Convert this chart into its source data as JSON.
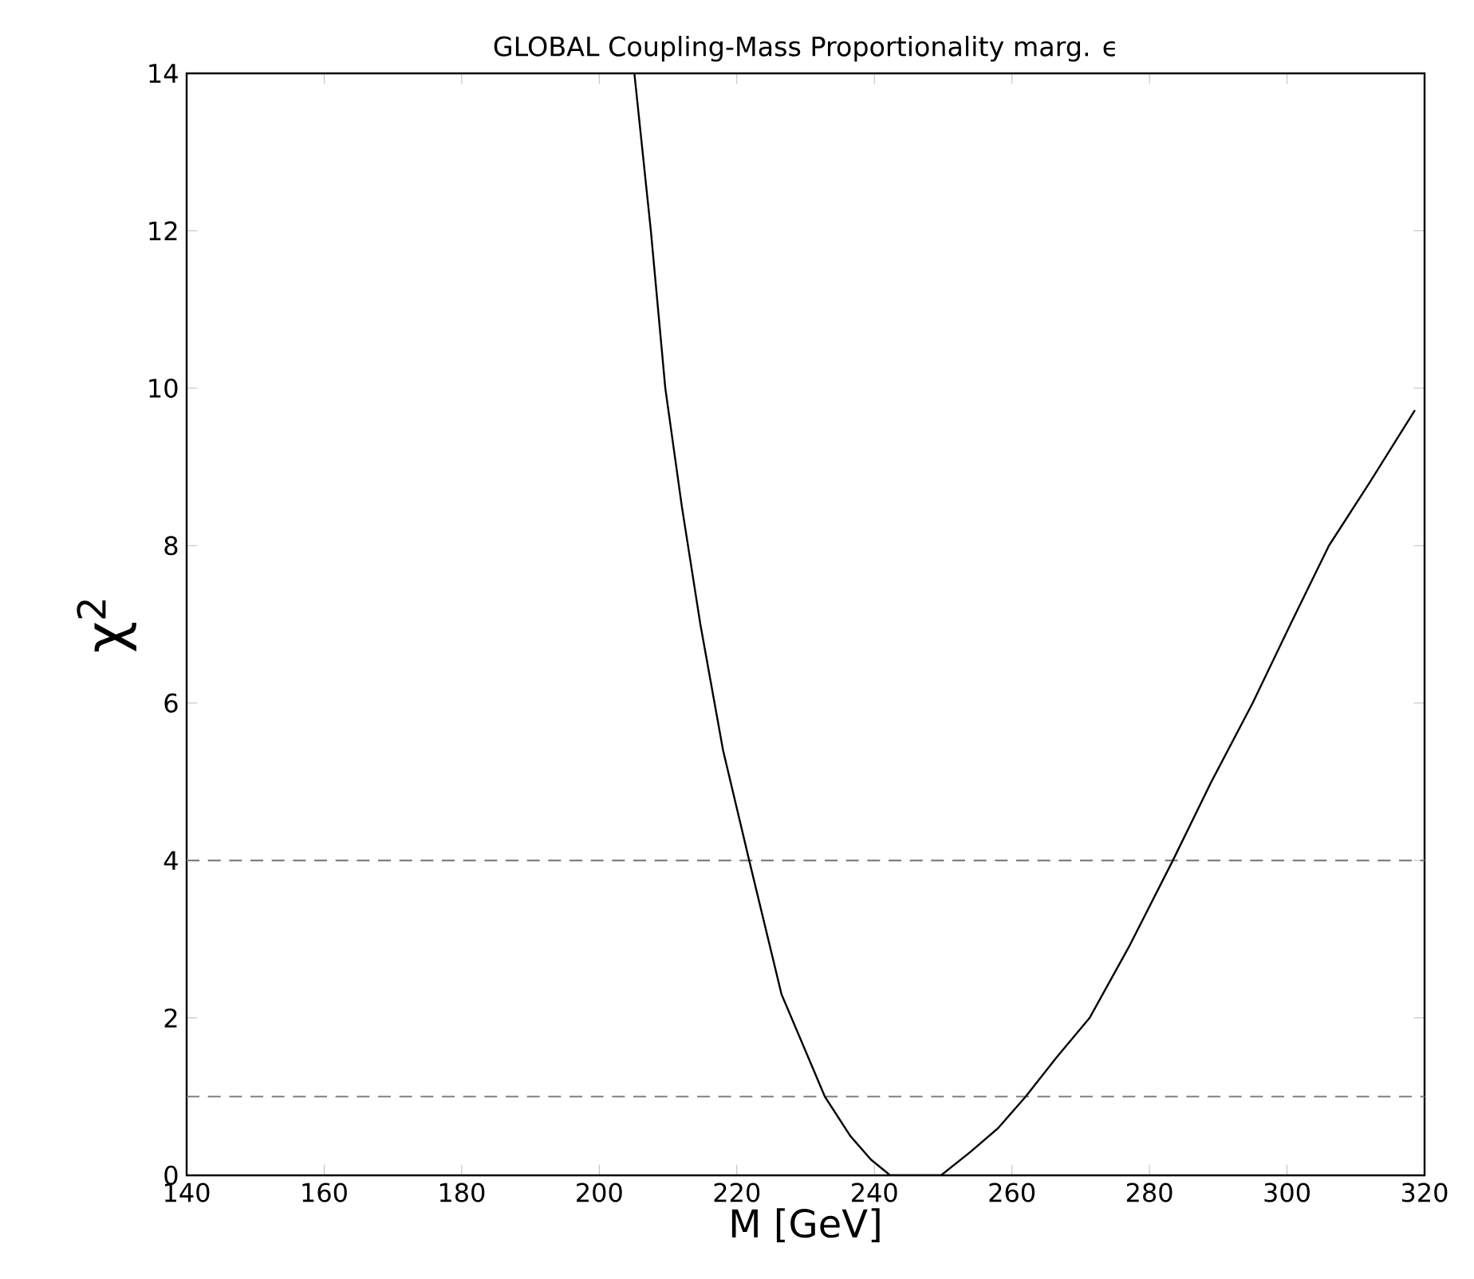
{
  "chart_data": {
    "type": "line",
    "title": "GLOBAL Coupling-Mass Proportionality marg. ϵ",
    "xlabel": "M [GeV]",
    "ylabel": "χ$^{2}$",
    "x": [
      205.1,
      207.5,
      209.6,
      212,
      214.7,
      218,
      221.8,
      226.5,
      232.8,
      236.5,
      239.5,
      242.3,
      246,
      249.7,
      254,
      258,
      262,
      266.5,
      271.3,
      277,
      283.4,
      289,
      295,
      300.5,
      306.1,
      312,
      318.6
    ],
    "series": [
      {
        "color": "#000000",
        "values": [
          14,
          12,
          10,
          8.5,
          7,
          5.4,
          4,
          2.3,
          1,
          0.5,
          0.2,
          0,
          0,
          0,
          0.3,
          0.6,
          1,
          1.5,
          2,
          2.9,
          4,
          5,
          6,
          7,
          8,
          8.8,
          9.72
        ]
      }
    ],
    "xlim": [
      140,
      320
    ],
    "ylim": [
      0,
      14
    ],
    "xticks": [
      140,
      160,
      180,
      200,
      220,
      240,
      260,
      280,
      300,
      320
    ],
    "yticks": [
      0,
      2,
      4,
      6,
      8,
      10,
      12,
      14
    ],
    "ref_lines": [
      {
        "axis": "y",
        "value": 4,
        "color": "#808080",
        "line_style": "dashed"
      },
      {
        "axis": "y",
        "value": 1,
        "color": "#808080",
        "line_style": "dashed"
      }
    ]
  }
}
